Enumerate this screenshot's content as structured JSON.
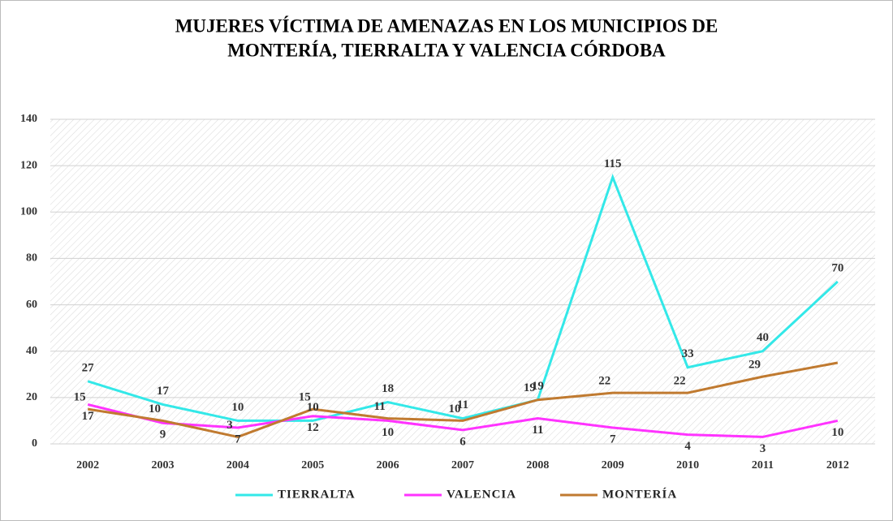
{
  "chart_data": {
    "type": "line",
    "title": [
      "MUJERES VÍCTIMA DE AMENAZAS EN LOS MUNICIPIOS DE",
      "MONTERÍA, TIERRALTA Y VALENCIA CÓRDOBA"
    ],
    "categories": [
      "2002",
      "2003",
      "2004",
      "2005",
      "2006",
      "2007",
      "2008",
      "2009",
      "2010",
      "2011",
      "2012"
    ],
    "series": [
      {
        "name": "TIERRALTA",
        "color": "#33e8e8",
        "values": [
          27,
          17,
          10,
          10,
          18,
          11,
          19,
          115,
          33,
          40,
          70
        ]
      },
      {
        "name": "VALENCIA",
        "color": "#ff33ff",
        "values": [
          17,
          9,
          7,
          12,
          10,
          6,
          11,
          7,
          4,
          3,
          10
        ]
      },
      {
        "name": "MONTERÍA",
        "color": "#c07a30",
        "values": [
          15,
          10,
          3,
          15,
          11,
          10,
          19,
          22,
          22,
          29,
          35
        ],
        "value_labels": [
          "15",
          "10",
          "3",
          "15",
          "11",
          "10",
          "19",
          "22",
          "22",
          "29",
          null
        ]
      }
    ],
    "ylim": [
      0,
      140
    ],
    "yticks": [
      0,
      20,
      40,
      60,
      80,
      100,
      120,
      140
    ],
    "grid": true,
    "legend": "bottom"
  }
}
